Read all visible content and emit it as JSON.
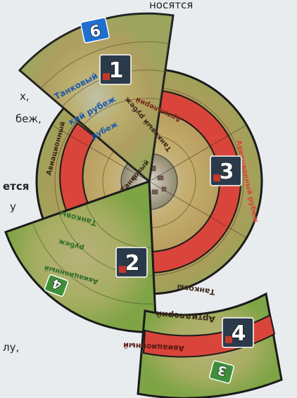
{
  "page_text": {
    "top_line": "носятся",
    "line_a": "х,",
    "line_b": "беж,",
    "line_c": "ется",
    "line_d": "у",
    "line_e": "лу,"
  },
  "segments": [
    {
      "number": "6",
      "badge_color": "#1f6fd1"
    },
    {
      "number": "1",
      "badge_color": "#2b3a4a"
    },
    {
      "number": "3",
      "badge_color": "#2b3a4a"
    },
    {
      "number": "2",
      "badge_color": "#2b3a4a"
    },
    {
      "number": "4",
      "badge_color": "#2b3a4a"
    },
    {
      "number": "4",
      "badge_color": "#3f8f3a"
    },
    {
      "number": "3",
      "badge_color": "#3f8f3a"
    }
  ],
  "ring_labels": {
    "aviation": "Авиационный рубеж",
    "artillery": "Артиллерийский рубеж",
    "tank": "Танковый рубеж",
    "aviation_short": "Авиационный",
    "artillery_short": "Артиллерий",
    "tank_short": "Танковы",
    "tank_inner": "Танковый",
    "ring_fragment": "кий рубеж",
    "fragment_tail": "рубеж"
  },
  "colors": {
    "red_ring": "#d9453a",
    "terrain": "#b8a56a",
    "grass": "#8faf4e",
    "border": "#1a1a1a",
    "label_blue": "#1f5aa8",
    "label_green": "#2f6e2a",
    "label_dark": "#3a2a1a"
  }
}
